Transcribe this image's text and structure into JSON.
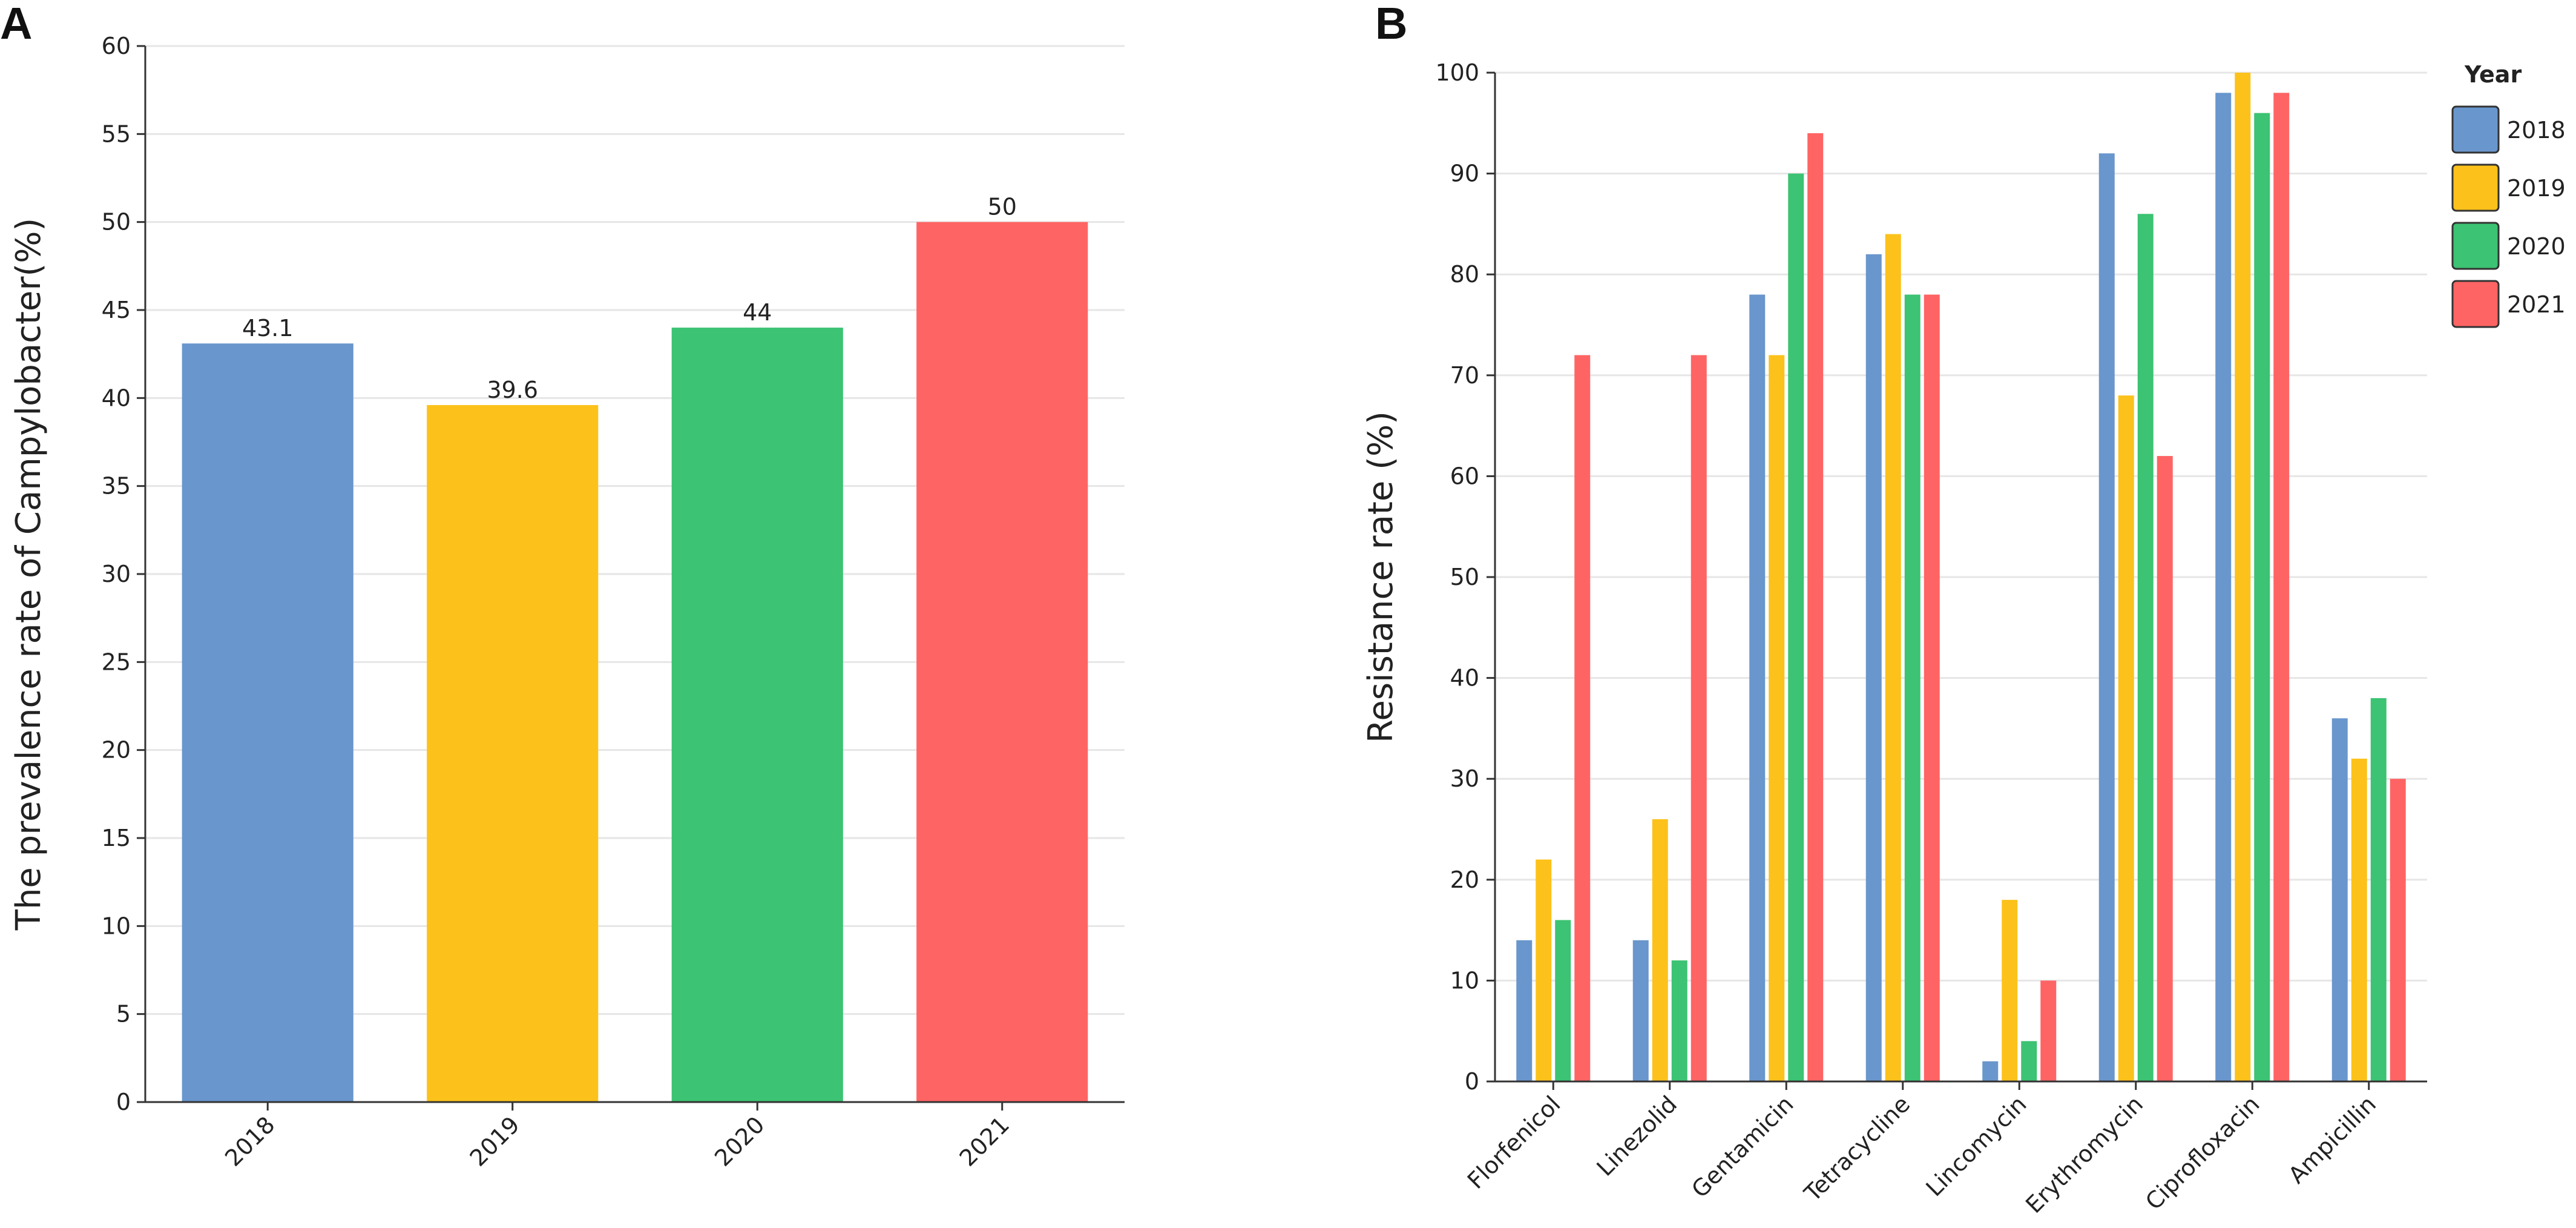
{
  "panels": {
    "a": "A",
    "b": "B"
  },
  "chart_data": [
    {
      "type": "bar",
      "panel": "A",
      "title": "",
      "xlabel": "",
      "ylabel": "The prevalence rate of Campylobacter(%)",
      "ylim": [
        0,
        60
      ],
      "yticks": [
        0,
        5,
        10,
        15,
        20,
        25,
        30,
        35,
        40,
        45,
        50,
        55,
        60
      ],
      "categories": [
        "2018",
        "2019",
        "2020",
        "2021"
      ],
      "values": [
        43.1,
        39.6,
        44,
        50
      ],
      "data_labels": [
        "43.1",
        "39.6",
        "44",
        "50"
      ],
      "colors": [
        "#6996CC",
        "#FCC21B",
        "#3CC373",
        "#FF6464"
      ],
      "grid": true
    },
    {
      "type": "bar",
      "panel": "B",
      "title": "",
      "xlabel": "",
      "ylabel": "Resistance rate (%)",
      "ylim": [
        0,
        100
      ],
      "yticks": [
        0,
        10,
        20,
        30,
        40,
        50,
        60,
        70,
        80,
        90,
        100
      ],
      "categories": [
        "Florfenicol",
        "Linezolid",
        "Gentamicin",
        "Tetracycline",
        "Lincomycin",
        "Erythromycin",
        "Ciprofloxacin",
        "Ampicillin"
      ],
      "legend": {
        "title": "Year",
        "position": "top-right"
      },
      "series": [
        {
          "name": "2018",
          "color": "#6996CC",
          "values": [
            14,
            14,
            78,
            82,
            2,
            92,
            98,
            36
          ]
        },
        {
          "name": "2019",
          "color": "#FCC21B",
          "values": [
            22,
            26,
            72,
            84,
            18,
            68,
            100,
            32
          ]
        },
        {
          "name": "2020",
          "color": "#3CC373",
          "values": [
            16,
            12,
            90,
            78,
            4,
            86,
            96,
            38
          ]
        },
        {
          "name": "2021",
          "color": "#FF6464",
          "values": [
            72,
            72,
            94,
            78,
            10,
            62,
            98,
            30
          ]
        }
      ],
      "grid": true
    }
  ]
}
